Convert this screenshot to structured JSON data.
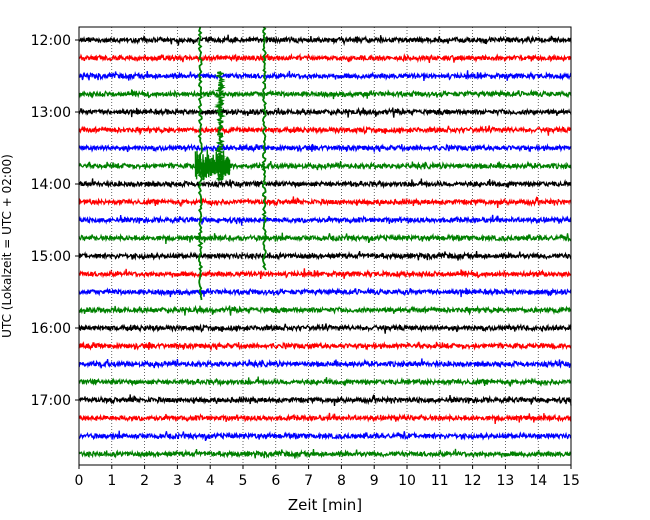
{
  "chart_data": {
    "type": "line",
    "title": "",
    "xlabel": "Zeit  [min]",
    "ylabel": "UTC (Lokalzeit = UTC + 02:00)",
    "xlim": [
      0,
      15
    ],
    "x_ticks": [
      "0",
      "1",
      "2",
      "3",
      "4",
      "5",
      "6",
      "7",
      "8",
      "9",
      "10",
      "11",
      "12",
      "13",
      "14",
      "15"
    ],
    "y_tick_labels": [
      "12:00",
      "13:00",
      "14:00",
      "15:00",
      "16:00",
      "17:00"
    ],
    "trace_interval_minutes": 15,
    "trace_start": "12:00",
    "trace_end": "17:45",
    "trace_count": 24,
    "trace_colors": [
      "#000000",
      "#ff0000",
      "#0000ff",
      "#008000"
    ],
    "grid": "vertical dotted lines at each minute",
    "legend": "none",
    "events": [
      {
        "minute": 3.7,
        "note": "large green spike spanning traces 12:00–15:45"
      },
      {
        "minute": 4.3,
        "note": "green burst near 13:45"
      },
      {
        "minute": 5.65,
        "note": "large green spike spanning traces 12:00–15:00"
      }
    ]
  }
}
